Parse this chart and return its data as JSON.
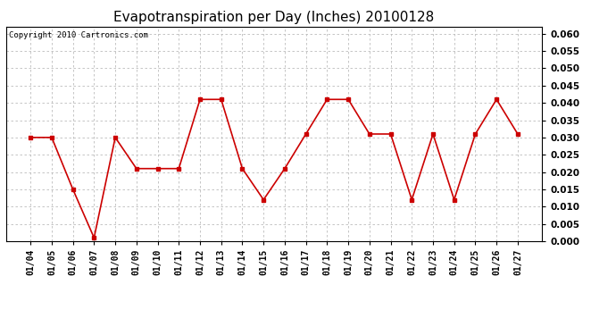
{
  "title": "Evapotranspiration per Day (Inches) 20100128",
  "copyright_text": "Copyright 2010 Cartronics.com",
  "x_labels": [
    "01/04",
    "01/05",
    "01/06",
    "01/07",
    "01/08",
    "01/09",
    "01/10",
    "01/11",
    "01/12",
    "01/13",
    "01/14",
    "01/15",
    "01/16",
    "01/17",
    "01/18",
    "01/19",
    "01/20",
    "01/21",
    "01/22",
    "01/23",
    "01/24",
    "01/25",
    "01/26",
    "01/27"
  ],
  "y_values": [
    0.03,
    0.03,
    0.015,
    0.001,
    0.03,
    0.021,
    0.021,
    0.021,
    0.041,
    0.041,
    0.021,
    0.012,
    0.021,
    0.031,
    0.041,
    0.041,
    0.031,
    0.031,
    0.012,
    0.031,
    0.012,
    0.031,
    0.041,
    0.031
  ],
  "line_color": "#cc0000",
  "marker": "s",
  "marker_size": 3,
  "line_width": 1.2,
  "ylim": [
    0.0,
    0.062
  ],
  "yticks": [
    0.0,
    0.005,
    0.01,
    0.015,
    0.02,
    0.025,
    0.03,
    0.035,
    0.04,
    0.045,
    0.05,
    0.055,
    0.06
  ],
  "background_color": "#ffffff",
  "grid_color": "#bbbbbb",
  "title_fontsize": 11,
  "copyright_fontsize": 6.5,
  "tick_fontsize": 7.5,
  "x_tick_fontsize": 7
}
